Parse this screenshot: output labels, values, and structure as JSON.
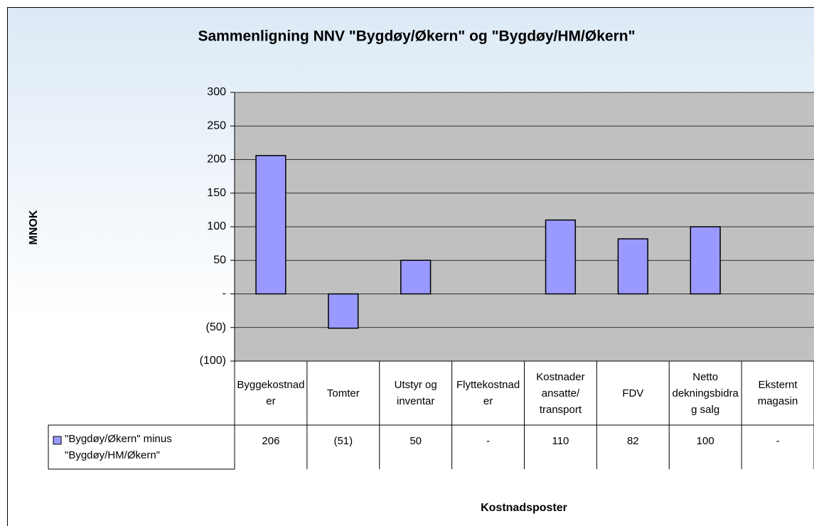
{
  "chart_data": {
    "type": "bar",
    "title": "Sammenligning NNV \"Bygdøy/Økern\" og \"Bygdøy/HM/Økern\"",
    "y_label": "MNOK",
    "x_label": "Kostnadsposter",
    "categories": [
      "Byggekostnader",
      "Tomter",
      "Utstyr og inventar",
      "Flyttekostnader",
      "Kostnader ansatte/ transport",
      "FDV",
      "Netto dekningsbidrag salg",
      "Eksternt magasin"
    ],
    "series": [
      {
        "name": "\"Bygdøy/Økern\" minus \"Bygdøy/HM/Økern\"",
        "color": "#9999ff",
        "values": [
          206,
          -51,
          50,
          0,
          110,
          82,
          100,
          0
        ],
        "value_labels": [
          "206",
          "(51)",
          "50",
          "-",
          "110",
          "82",
          "100",
          "-"
        ]
      }
    ],
    "ylim": [
      -100,
      300
    ],
    "yticks": [
      {
        "value": -100,
        "label": "(100)"
      },
      {
        "value": -50,
        "label": "(50)"
      },
      {
        "value": 0,
        "label": "-"
      },
      50,
      100,
      150,
      200,
      250,
      300
    ],
    "grid": true
  }
}
